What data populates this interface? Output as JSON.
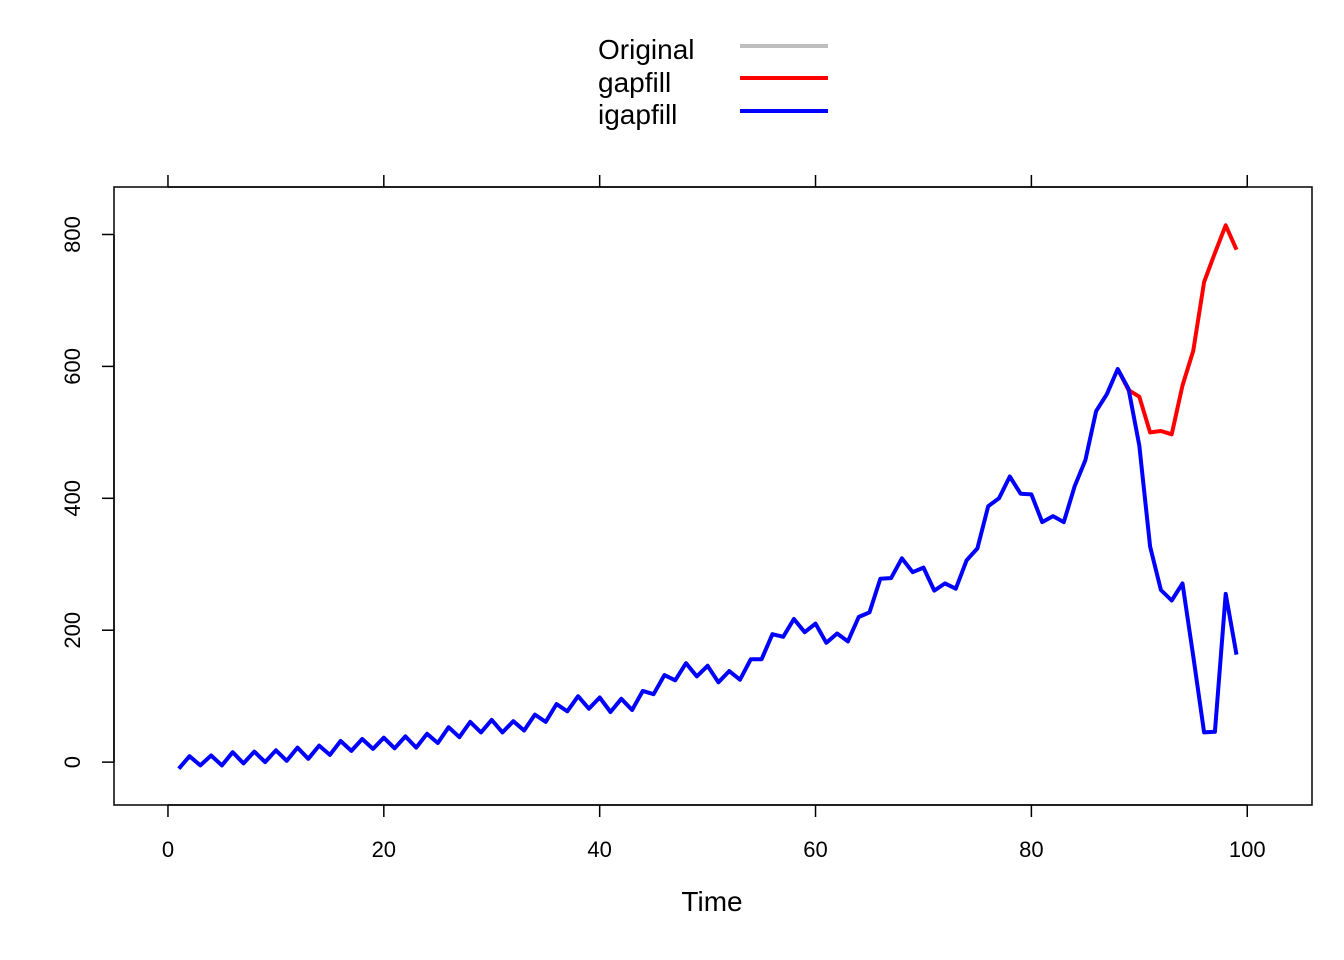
{
  "chart_data": {
    "type": "line",
    "title": "",
    "xlabel": "Time",
    "ylabel": "",
    "xlim": [
      -5,
      106
    ],
    "ylim": [
      -65,
      872
    ],
    "x_ticks": [
      0,
      20,
      40,
      60,
      80,
      100
    ],
    "y_ticks": [
      0,
      200,
      400,
      600,
      800
    ],
    "grid": false,
    "legend_position": "top-center",
    "legend": [
      {
        "name": "Original",
        "color": "#BEBEBE"
      },
      {
        "name": "gapfill",
        "color": "#FF0000"
      },
      {
        "name": "igapfill",
        "color": "#0000FF"
      }
    ],
    "series": [
      {
        "name": "gapfill",
        "color": "#FF0000",
        "x": [
          88,
          89,
          90,
          91,
          92,
          93,
          94,
          95,
          96,
          97,
          98,
          99
        ],
        "values": [
          596,
          564,
          554,
          500,
          502,
          497,
          571,
          624,
          728,
          772,
          814,
          777
        ]
      },
      {
        "name": "igapfill",
        "color": "#0000FF",
        "x": [
          1,
          2,
          3,
          4,
          5,
          6,
          7,
          8,
          9,
          10,
          11,
          12,
          13,
          14,
          15,
          16,
          17,
          18,
          19,
          20,
          21,
          22,
          23,
          24,
          25,
          26,
          27,
          28,
          29,
          30,
          31,
          32,
          33,
          34,
          35,
          36,
          37,
          38,
          39,
          40,
          41,
          42,
          43,
          44,
          45,
          46,
          47,
          48,
          49,
          50,
          51,
          52,
          53,
          54,
          55,
          56,
          57,
          58,
          59,
          60,
          61,
          62,
          63,
          64,
          65,
          66,
          67,
          68,
          69,
          70,
          71,
          72,
          73,
          74,
          75,
          76,
          77,
          78,
          79,
          80,
          81,
          82,
          83,
          84,
          85,
          86,
          87,
          88,
          89,
          90,
          91,
          92,
          93,
          94,
          95,
          96,
          97,
          98,
          99
        ],
        "values": [
          -10,
          9,
          -5,
          10,
          -5,
          15,
          -2,
          16,
          0,
          18,
          2,
          22,
          5,
          25,
          11,
          32,
          17,
          35,
          20,
          37,
          21,
          39,
          22,
          43,
          29,
          53,
          38,
          61,
          45,
          64,
          45,
          62,
          48,
          72,
          61,
          88,
          77,
          100,
          81,
          98,
          76,
          96,
          79,
          108,
          103,
          132,
          124,
          150,
          130,
          146,
          121,
          138,
          125,
          156,
          156,
          194,
          190,
          217,
          197,
          210,
          181,
          195,
          183,
          220,
          227,
          278,
          279,
          309,
          288,
          295,
          260,
          271,
          263,
          306,
          324,
          388,
          400,
          433,
          407,
          406,
          364,
          373,
          364,
          418,
          458,
          532,
          558,
          596,
          566,
          480,
          327,
          261,
          245,
          271,
          160,
          45,
          46,
          255,
          163
        ]
      }
    ]
  }
}
